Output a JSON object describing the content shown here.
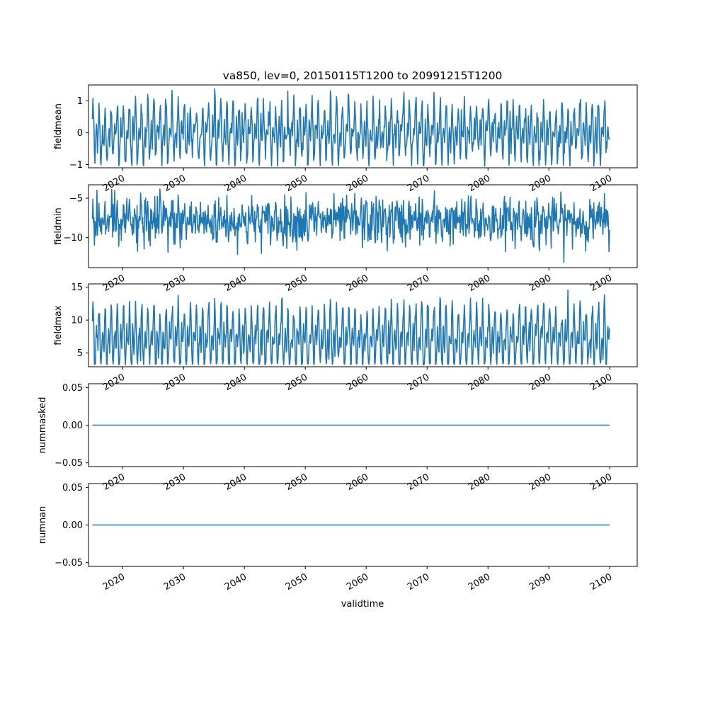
{
  "chart_data": {
    "type": "line",
    "title": "va850, lev=0, 20150115T1200 to 20991215T1200",
    "xlabel": "validtime",
    "x_range": [
      "2015-01-15",
      "2099-12-15"
    ],
    "xlim": [
      2014.4,
      2104.5
    ],
    "x_ticks": [
      "2020",
      "2030",
      "2040",
      "2050",
      "2060",
      "2070",
      "2080",
      "2090",
      "2100"
    ],
    "x_tick_values": [
      2020,
      2030,
      2040,
      2050,
      2060,
      2070,
      2080,
      2090,
      2100
    ],
    "line_color": "#1f77b4",
    "grid": false,
    "subplots": [
      {
        "ylabel": "fieldmean",
        "ylim": [
          -1.1,
          1.5
        ],
        "y_ticks": [
          -1,
          0,
          1
        ],
        "y_tick_labels": [
          "−1",
          "0",
          "1"
        ],
        "series": {
          "seasonal_amp": 0.5,
          "mean": 0.0,
          "noise": 0.22,
          "min": -1.05,
          "max": 1.4
        }
      },
      {
        "ylabel": "fieldmin",
        "ylim": [
          -13.8,
          -3.3
        ],
        "y_ticks": [
          -10,
          -5
        ],
        "y_tick_labels": [
          "−10",
          "−5"
        ],
        "series": {
          "seasonal_amp": 0.6,
          "mean": -7.9,
          "noise": 1.4,
          "min": -13.3,
          "max": -3.8
        }
      },
      {
        "ylabel": "fieldmax",
        "ylim": [
          2.9,
          15.5
        ],
        "y_ticks": [
          5,
          10,
          15
        ],
        "y_tick_labels": [
          "5",
          "10",
          "15"
        ],
        "series": {
          "seasonal_amp": 2.8,
          "mean": 7.2,
          "noise": 0.9,
          "min": 3.2,
          "max": 14.8
        }
      },
      {
        "ylabel": "nummasked",
        "ylim": [
          -0.055,
          0.055
        ],
        "y_ticks": [
          -0.05,
          0.0,
          0.05
        ],
        "y_tick_labels": [
          "−0.05",
          "0.00",
          "0.05"
        ],
        "series": {
          "constant": 0.0
        }
      },
      {
        "ylabel": "numnan",
        "ylim": [
          -0.055,
          0.055
        ],
        "y_ticks": [
          -0.05,
          0.0,
          0.05
        ],
        "y_tick_labels": [
          "−0.05",
          "0.00",
          "0.05"
        ],
        "series": {
          "constant": 0.0
        }
      }
    ]
  }
}
